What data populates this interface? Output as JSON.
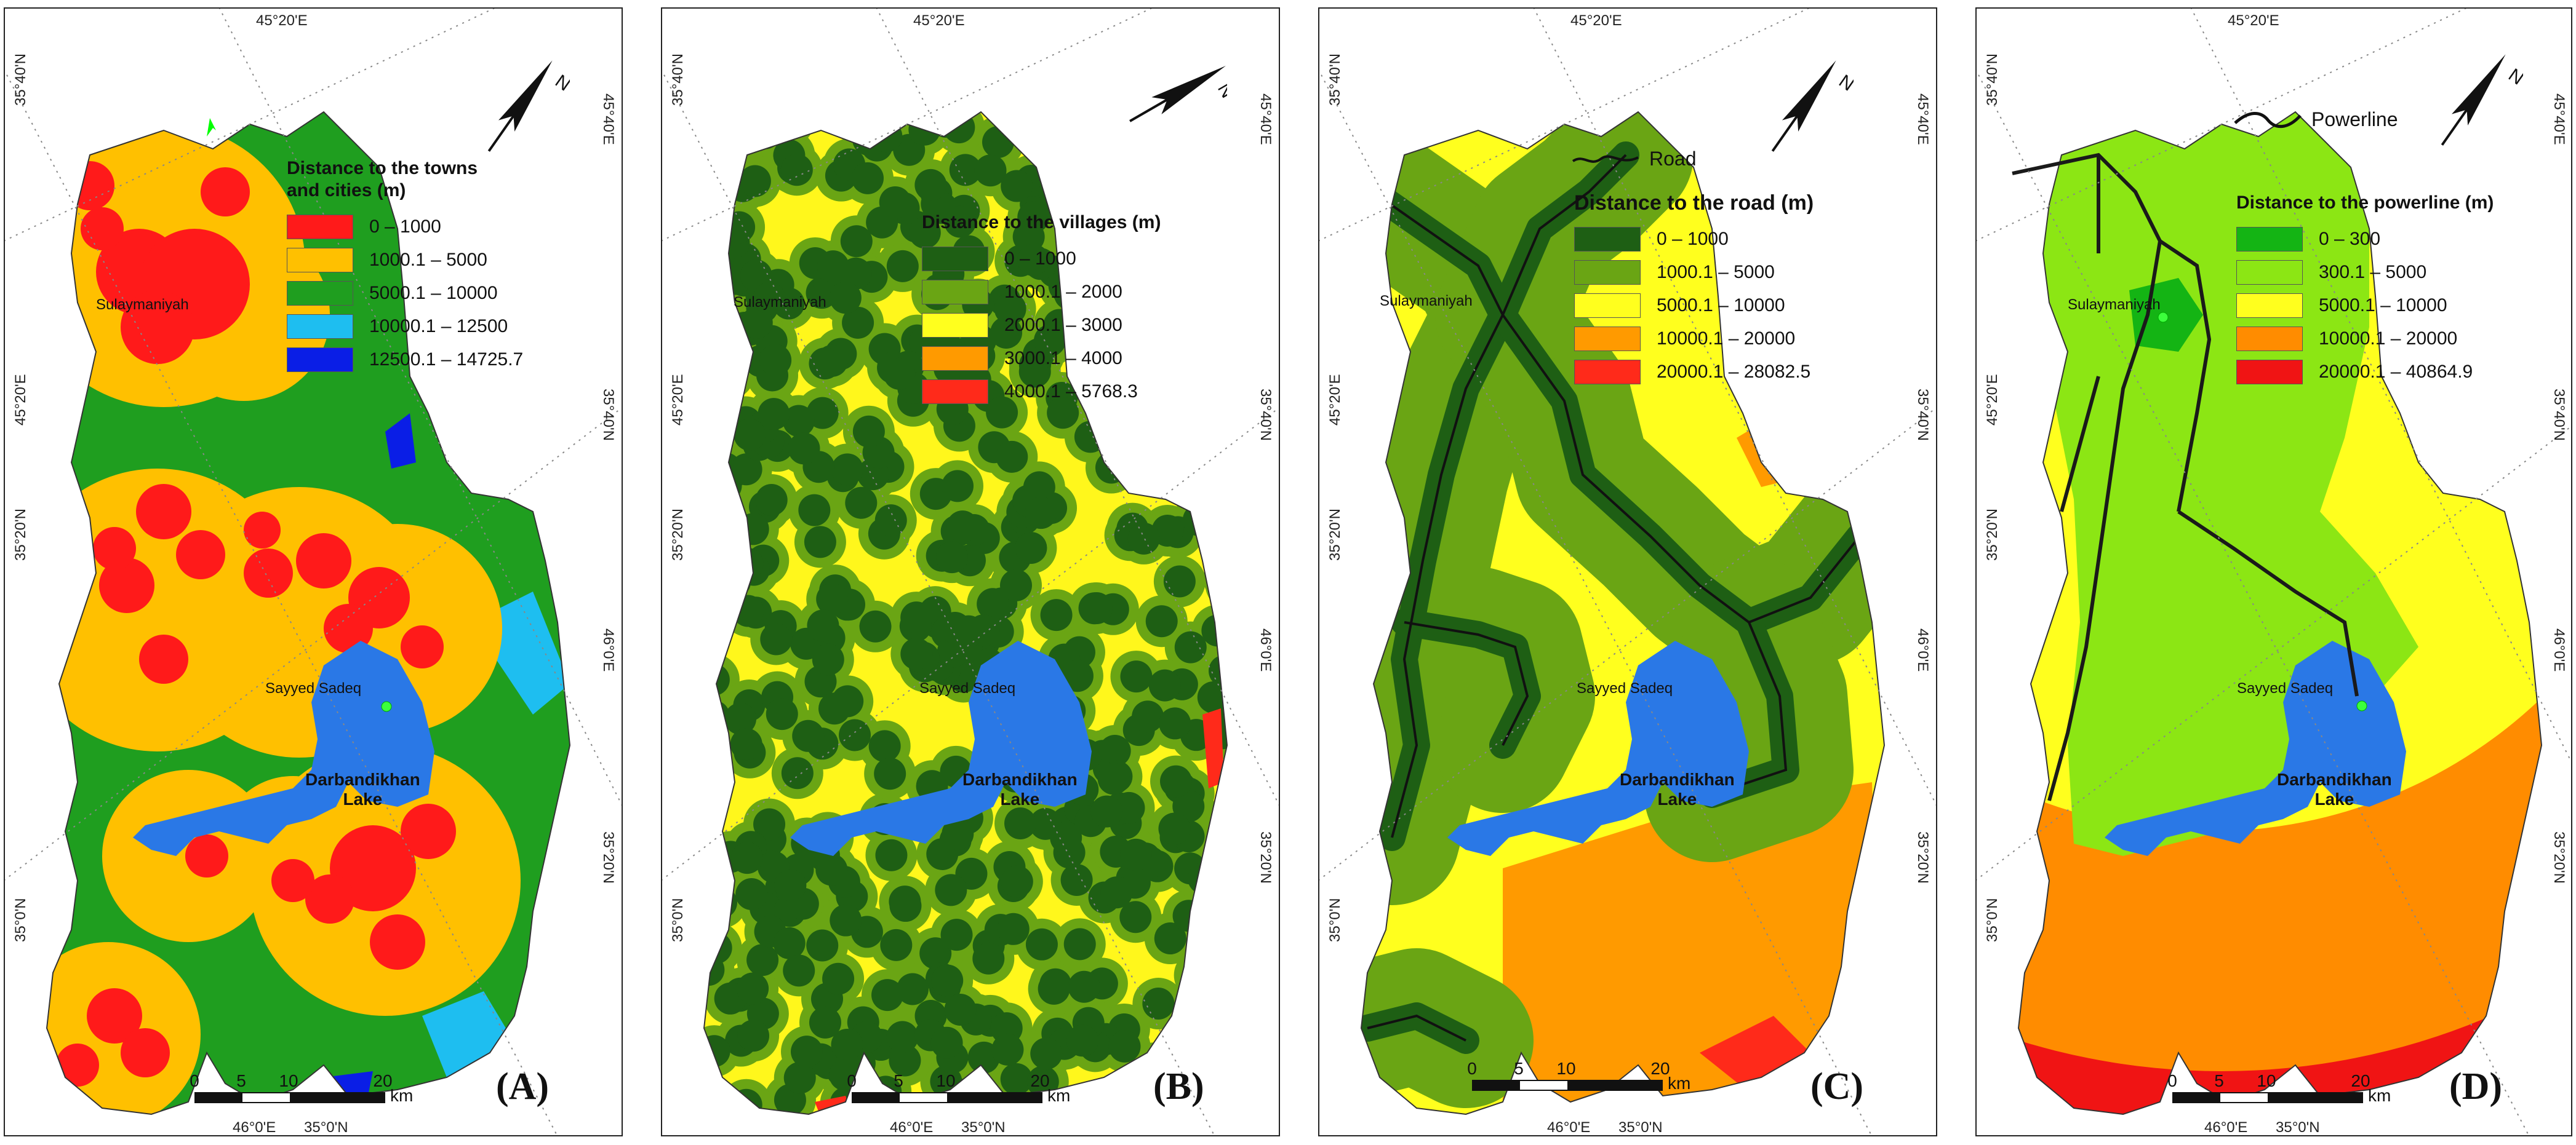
{
  "colors": {
    "lake": "#2a78e6",
    "frame": "#222222",
    "powerline": "#1a1a1a"
  },
  "icons": {
    "north_arrow": "north-arrow-icon",
    "city_marker": "green-star-icon"
  },
  "common": {
    "scale_labels": [
      "0",
      "5",
      "10",
      "20"
    ],
    "scale_unit": "km",
    "lake_name_line1": "Darbandikhan",
    "lake_name_line2": "Lake",
    "city_sulaymaniyah": "Sulaymaniyah",
    "city_sayyed_sadeq": "Sayyed Sadeq"
  },
  "panels": [
    {
      "id": "A",
      "label": "(A)",
      "legend_title_line1": "Distance to the towns",
      "legend_title_line2": "and cities (m)",
      "classes": [
        {
          "label": "0 – 1000",
          "color": "#ff1a1a"
        },
        {
          "label": "1000.1 – 5000",
          "color": "#ffc000"
        },
        {
          "label": "5000.1 – 10000",
          "color": "#1f9e1f"
        },
        {
          "label": "10000.1 – 12500",
          "color": "#1ebef0"
        },
        {
          "label": "12500.1 – 14725.7",
          "color": "#0a1ee6"
        }
      ],
      "coords": {
        "top": "45°20'E",
        "left_upper": "35°40'N",
        "left_mid": "45°20'E",
        "left_lower": "35°20'N",
        "left_bottom": "35°0'N",
        "right_upper": "45°40'E",
        "right_mid": "35°40'N",
        "right_lower": "46°0'E",
        "right_bottom": "35°20'N",
        "bottom_left": "46°0'E",
        "bottom_right": "35°0'N"
      }
    },
    {
      "id": "B",
      "label": "(B)",
      "legend_title_line1": "Distance to the villages (m)",
      "classes": [
        {
          "label": "0 – 1000",
          "color": "#1e5f14"
        },
        {
          "label": "1000.1 – 2000",
          "color": "#6aa514"
        },
        {
          "label": "2000.1 – 3000",
          "color": "#ffff1e"
        },
        {
          "label": "3000.1 – 4000",
          "color": "#ff9a00"
        },
        {
          "label": "4000.1 – 5768.3",
          "color": "#ff2a1a"
        }
      ],
      "coords": {
        "top": "45°20'E",
        "left_upper": "35°40'N",
        "left_mid": "45°20'E",
        "left_lower": "35°20'N",
        "left_bottom": "35°0'N",
        "right_upper": "45°40'E",
        "right_mid": "35°40'N",
        "right_lower": "46°0'E",
        "right_bottom": "35°20'N",
        "bottom_left": "46°0'E",
        "bottom_right": "35°0'N"
      }
    },
    {
      "id": "C",
      "label": "(C)",
      "route_key": "Road",
      "legend_title_line1": "Distance to the road (m)",
      "classes": [
        {
          "label": "0 – 1000",
          "color": "#1e5f14"
        },
        {
          "label": "1000.1 – 5000",
          "color": "#6aa514"
        },
        {
          "label": "5000.1 – 10000",
          "color": "#ffff1e"
        },
        {
          "label": "10000.1 – 20000",
          "color": "#ff9a00"
        },
        {
          "label": "20000.1 – 28082.5",
          "color": "#ff2a1a"
        }
      ],
      "coords": {
        "top": "45°20'E",
        "left_upper": "35°40'N",
        "left_mid": "45°20'E",
        "left_lower": "35°20'N",
        "left_bottom": "35°0'N",
        "right_upper": "45°40'E",
        "right_mid": "35°40'N",
        "right_lower": "46°0'E",
        "right_bottom": "35°20'N",
        "bottom_left": "46°0'E",
        "bottom_right": "35°0'N"
      }
    },
    {
      "id": "D",
      "label": "(D)",
      "route_key": "Powerline",
      "legend_title_line1": "Distance to the powerline (m)",
      "classes": [
        {
          "label": "0 – 300",
          "color": "#14b414"
        },
        {
          "label": "300.1 – 5000",
          "color": "#8ce614"
        },
        {
          "label": "5000.1 – 10000",
          "color": "#ffff1e"
        },
        {
          "label": "10000.1 – 20000",
          "color": "#ff8c00"
        },
        {
          "label": "20000.1 – 40864.9",
          "color": "#f01414"
        }
      ],
      "coords": {
        "top": "45°20'E",
        "left_upper": "35°40'N",
        "left_mid": "45°20'E",
        "left_lower": "35°20'N",
        "left_bottom": "35°0'N",
        "right_upper": "45°40'E",
        "right_mid": "35°40'N",
        "right_lower": "46°0'E",
        "right_bottom": "35°20'N",
        "bottom_left": "46°0'E",
        "bottom_right": "35°0'N"
      }
    }
  ]
}
